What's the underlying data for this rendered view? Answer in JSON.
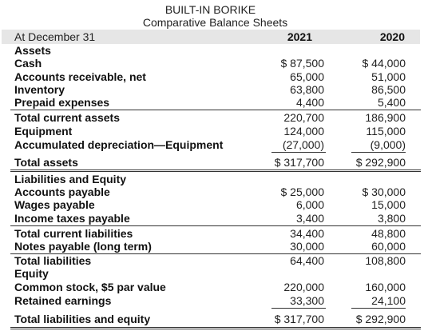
{
  "header": {
    "company": "BUILT-IN BORIKE",
    "statement": "Comparative Balance Sheets",
    "date_label": "At December 31",
    "year1": "2021",
    "year2": "2020"
  },
  "rows": [
    {
      "label": "Assets",
      "v2021": "",
      "v2020": ""
    },
    {
      "label": "Cash",
      "v2021": "$ 87,500",
      "v2020": "$ 44,000"
    },
    {
      "label": "Accounts receivable, net",
      "v2021": "65,000",
      "v2020": "51,000"
    },
    {
      "label": "Inventory",
      "v2021": "63,800",
      "v2020": "86,500"
    },
    {
      "label": "Prepaid expenses",
      "v2021": "4,400",
      "v2020": "5,400"
    },
    {
      "label": "Total current assets",
      "v2021": "220,700",
      "v2020": "186,900"
    },
    {
      "label": "Equipment",
      "v2021": "124,000",
      "v2020": "115,000"
    },
    {
      "label": "Accumulated depreciation—Equipment",
      "v2021": "(27,000)",
      "v2020": "(9,000)"
    },
    {
      "label": "Total assets",
      "v2021": "$ 317,700",
      "v2020": "$ 292,900"
    },
    {
      "label": "Liabilities and Equity",
      "v2021": "",
      "v2020": ""
    },
    {
      "label": "Accounts payable",
      "v2021": "$ 25,000",
      "v2020": "$ 30,000"
    },
    {
      "label": "Wages payable",
      "v2021": "6,000",
      "v2020": "15,000"
    },
    {
      "label": "Income taxes payable",
      "v2021": "3,400",
      "v2020": "3,800"
    },
    {
      "label": "Total current liabilities",
      "v2021": "34,400",
      "v2020": "48,800"
    },
    {
      "label": "Notes payable (long term)",
      "v2021": "30,000",
      "v2020": "60,000"
    },
    {
      "label": "Total liabilities",
      "v2021": "64,400",
      "v2020": "108,800"
    },
    {
      "label": "Equity",
      "v2021": "",
      "v2020": ""
    },
    {
      "label": "Common stock, $5 par value",
      "v2021": "220,000",
      "v2020": "160,000"
    },
    {
      "label": "Retained earnings",
      "v2021": "33,300",
      "v2020": "24,100"
    },
    {
      "label": "Total liabilities and equity",
      "v2021": "$ 317,700",
      "v2020": "$ 292,900"
    }
  ]
}
